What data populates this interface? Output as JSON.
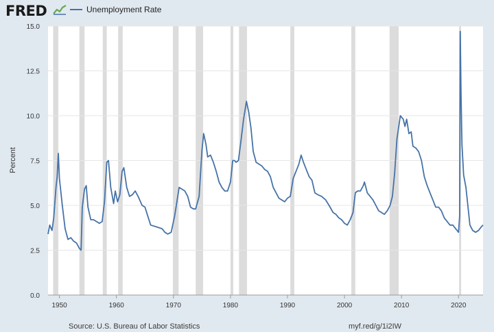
{
  "header": {
    "logo_text": "FRED",
    "logo_icon": "fred-graph-icon",
    "legend_label": "Unemployment Rate",
    "series_color": "#4572a7"
  },
  "footer": {
    "source": "Source: U.S. Bureau of Labor Statistics",
    "link": "myf.red/g/1i2IW"
  },
  "chart_data": {
    "type": "line",
    "title": "",
    "xlabel": "",
    "ylabel": "Percent",
    "xlim": [
      1948,
      2024.3
    ],
    "ylim": [
      0,
      15
    ],
    "x_ticks": [
      "1950",
      "1960",
      "1970",
      "1980",
      "1990",
      "2000",
      "2010",
      "2020"
    ],
    "y_ticks": [
      "0.0",
      "2.5",
      "5.0",
      "7.5",
      "10.0",
      "12.5",
      "15.0"
    ],
    "grid": true,
    "legend_position": "top-left",
    "recessions": [
      [
        1948.9,
        1949.8
      ],
      [
        1953.5,
        1954.4
      ],
      [
        1957.6,
        1958.3
      ],
      [
        1960.3,
        1961.1
      ],
      [
        1969.9,
        1970.9
      ],
      [
        1973.9,
        1975.2
      ],
      [
        1980.0,
        1980.5
      ],
      [
        1981.5,
        1982.9
      ],
      [
        1990.5,
        1991.2
      ],
      [
        2001.2,
        2001.9
      ],
      [
        2007.9,
        2009.5
      ],
      [
        2020.1,
        2020.3
      ]
    ],
    "series": [
      {
        "name": "Unemployment Rate",
        "points": [
          [
            1948.0,
            3.4
          ],
          [
            1948.3,
            3.9
          ],
          [
            1948.7,
            3.6
          ],
          [
            1949.0,
            4.3
          ],
          [
            1949.4,
            6.0
          ],
          [
            1949.6,
            6.6
          ],
          [
            1949.8,
            7.9
          ],
          [
            1950.0,
            6.5
          ],
          [
            1950.5,
            5.0
          ],
          [
            1951.0,
            3.7
          ],
          [
            1951.5,
            3.1
          ],
          [
            1952.0,
            3.2
          ],
          [
            1952.5,
            3.0
          ],
          [
            1953.0,
            2.9
          ],
          [
            1953.5,
            2.6
          ],
          [
            1953.8,
            2.5
          ],
          [
            1954.0,
            4.9
          ],
          [
            1954.4,
            5.9
          ],
          [
            1954.7,
            6.1
          ],
          [
            1955.0,
            4.9
          ],
          [
            1955.5,
            4.2
          ],
          [
            1956.0,
            4.2
          ],
          [
            1956.5,
            4.1
          ],
          [
            1957.0,
            4.0
          ],
          [
            1957.5,
            4.1
          ],
          [
            1957.9,
            5.2
          ],
          [
            1958.3,
            7.4
          ],
          [
            1958.6,
            7.5
          ],
          [
            1959.0,
            6.0
          ],
          [
            1959.5,
            5.1
          ],
          [
            1959.8,
            5.8
          ],
          [
            1960.2,
            5.2
          ],
          [
            1960.6,
            5.6
          ],
          [
            1961.0,
            6.9
          ],
          [
            1961.3,
            7.1
          ],
          [
            1961.8,
            6.0
          ],
          [
            1962.3,
            5.5
          ],
          [
            1962.8,
            5.6
          ],
          [
            1963.3,
            5.8
          ],
          [
            1963.8,
            5.5
          ],
          [
            1964.5,
            5.0
          ],
          [
            1965.0,
            4.9
          ],
          [
            1965.5,
            4.4
          ],
          [
            1966.0,
            3.9
          ],
          [
            1967.0,
            3.8
          ],
          [
            1968.0,
            3.7
          ],
          [
            1968.5,
            3.5
          ],
          [
            1969.0,
            3.4
          ],
          [
            1969.6,
            3.5
          ],
          [
            1970.2,
            4.4
          ],
          [
            1970.6,
            5.2
          ],
          [
            1971.0,
            6.0
          ],
          [
            1971.5,
            5.9
          ],
          [
            1972.0,
            5.8
          ],
          [
            1972.5,
            5.5
          ],
          [
            1973.0,
            4.9
          ],
          [
            1973.5,
            4.8
          ],
          [
            1973.9,
            4.8
          ],
          [
            1974.5,
            5.5
          ],
          [
            1975.0,
            8.1
          ],
          [
            1975.3,
            9.0
          ],
          [
            1975.7,
            8.4
          ],
          [
            1976.0,
            7.7
          ],
          [
            1976.5,
            7.8
          ],
          [
            1977.0,
            7.4
          ],
          [
            1977.5,
            6.9
          ],
          [
            1978.0,
            6.3
          ],
          [
            1978.5,
            6.0
          ],
          [
            1979.0,
            5.8
          ],
          [
            1979.5,
            5.8
          ],
          [
            1980.0,
            6.3
          ],
          [
            1980.4,
            7.5
          ],
          [
            1980.7,
            7.5
          ],
          [
            1981.0,
            7.4
          ],
          [
            1981.4,
            7.5
          ],
          [
            1981.8,
            8.5
          ],
          [
            1982.3,
            9.8
          ],
          [
            1982.8,
            10.8
          ],
          [
            1983.2,
            10.2
          ],
          [
            1983.6,
            9.3
          ],
          [
            1984.0,
            8.0
          ],
          [
            1984.5,
            7.4
          ],
          [
            1985.0,
            7.3
          ],
          [
            1985.5,
            7.2
          ],
          [
            1986.0,
            7.0
          ],
          [
            1986.5,
            6.9
          ],
          [
            1987.0,
            6.6
          ],
          [
            1987.5,
            6.0
          ],
          [
            1988.0,
            5.7
          ],
          [
            1988.5,
            5.4
          ],
          [
            1989.0,
            5.3
          ],
          [
            1989.5,
            5.2
          ],
          [
            1990.0,
            5.4
          ],
          [
            1990.5,
            5.5
          ],
          [
            1991.0,
            6.5
          ],
          [
            1991.5,
            6.9
          ],
          [
            1992.0,
            7.3
          ],
          [
            1992.4,
            7.8
          ],
          [
            1992.8,
            7.4
          ],
          [
            1993.3,
            7.0
          ],
          [
            1993.8,
            6.6
          ],
          [
            1994.3,
            6.4
          ],
          [
            1994.8,
            5.7
          ],
          [
            1995.3,
            5.6
          ],
          [
            1996.0,
            5.5
          ],
          [
            1996.7,
            5.3
          ],
          [
            1997.3,
            5.0
          ],
          [
            1998.0,
            4.6
          ],
          [
            1998.5,
            4.5
          ],
          [
            1999.0,
            4.3
          ],
          [
            1999.5,
            4.2
          ],
          [
            2000.0,
            4.0
          ],
          [
            2000.5,
            3.9
          ],
          [
            2001.0,
            4.2
          ],
          [
            2001.5,
            4.6
          ],
          [
            2001.9,
            5.7
          ],
          [
            2002.3,
            5.8
          ],
          [
            2002.8,
            5.8
          ],
          [
            2003.3,
            6.1
          ],
          [
            2003.5,
            6.3
          ],
          [
            2004.0,
            5.7
          ],
          [
            2004.5,
            5.5
          ],
          [
            2005.0,
            5.3
          ],
          [
            2005.5,
            5.0
          ],
          [
            2006.0,
            4.7
          ],
          [
            2006.5,
            4.6
          ],
          [
            2007.0,
            4.5
          ],
          [
            2007.5,
            4.7
          ],
          [
            2008.0,
            5.0
          ],
          [
            2008.4,
            5.5
          ],
          [
            2008.8,
            6.8
          ],
          [
            2009.2,
            8.7
          ],
          [
            2009.8,
            10.0
          ],
          [
            2010.3,
            9.8
          ],
          [
            2010.6,
            9.4
          ],
          [
            2010.9,
            9.8
          ],
          [
            2011.3,
            9.0
          ],
          [
            2011.7,
            9.1
          ],
          [
            2012.0,
            8.3
          ],
          [
            2012.5,
            8.2
          ],
          [
            2013.0,
            8.0
          ],
          [
            2013.5,
            7.5
          ],
          [
            2014.0,
            6.6
          ],
          [
            2014.5,
            6.1
          ],
          [
            2015.0,
            5.7
          ],
          [
            2015.5,
            5.3
          ],
          [
            2016.0,
            4.9
          ],
          [
            2016.5,
            4.9
          ],
          [
            2017.0,
            4.7
          ],
          [
            2017.5,
            4.3
          ],
          [
            2018.0,
            4.1
          ],
          [
            2018.5,
            3.9
          ],
          [
            2019.0,
            3.9
          ],
          [
            2019.5,
            3.7
          ],
          [
            2020.0,
            3.5
          ],
          [
            2020.2,
            4.4
          ],
          [
            2020.3,
            14.7
          ],
          [
            2020.45,
            11.1
          ],
          [
            2020.6,
            8.4
          ],
          [
            2020.9,
            6.7
          ],
          [
            2021.3,
            6.0
          ],
          [
            2021.7,
            4.8
          ],
          [
            2022.0,
            3.9
          ],
          [
            2022.5,
            3.6
          ],
          [
            2023.0,
            3.5
          ],
          [
            2023.5,
            3.6
          ],
          [
            2024.0,
            3.8
          ],
          [
            2024.3,
            3.9
          ]
        ]
      }
    ]
  }
}
